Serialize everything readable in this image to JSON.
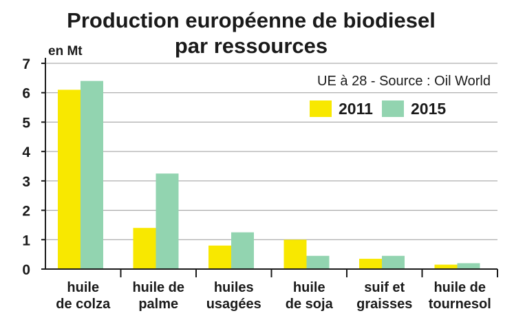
{
  "colors": {
    "series_2011": "#f8e800",
    "series_2015": "#92d4b0",
    "grid": "#9a9a9a",
    "axis": "#1a1a1a"
  },
  "chart_data": {
    "type": "bar",
    "title_line1": "Production européenne de biodiesel",
    "title_line2": "par ressources",
    "ylabel": "en Mt",
    "source": "UE à 28 - Source : Oil World",
    "ylim": [
      0,
      7
    ],
    "yticks": [
      "0",
      "1",
      "2",
      "3",
      "4",
      "5",
      "6",
      "7"
    ],
    "grid": true,
    "legend_position": "top-right",
    "categories": [
      [
        "huile",
        "de colza"
      ],
      [
        "huile de",
        "palme"
      ],
      [
        "huiles",
        "usagées"
      ],
      [
        "huile",
        "de soja"
      ],
      [
        "suif et",
        "graisses"
      ],
      [
        "huile de",
        "tournesol"
      ]
    ],
    "series": [
      {
        "name": "2011",
        "values": [
          6.1,
          1.4,
          0.8,
          1.0,
          0.35,
          0.15
        ]
      },
      {
        "name": "2015",
        "values": [
          6.4,
          3.25,
          1.25,
          0.45,
          0.45,
          0.2
        ]
      }
    ]
  }
}
